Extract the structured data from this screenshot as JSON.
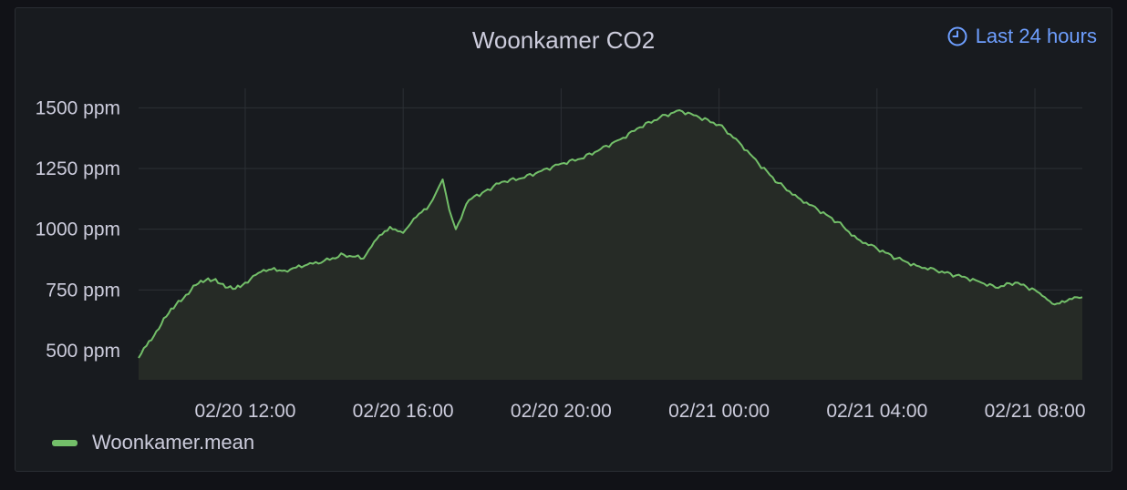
{
  "panel": {
    "time_range_label": "Last 24 hours"
  },
  "colors": {
    "series": "#73bf69",
    "fill": "#262b26",
    "grid": "#2c3035",
    "text": "#ccccdc",
    "accent": "#6e9fff"
  },
  "icons": {
    "time_range": "clock-icon",
    "legend": "line-swatch"
  },
  "chart_data": {
    "type": "area",
    "title": "Woonkamer CO2",
    "xlabel": "",
    "ylabel": "",
    "unit": "ppm",
    "x_range": [
      "02/20 09:18",
      "02/21 09:12"
    ],
    "ylim": [
      380,
      1580
    ],
    "y_ticks": [
      500,
      750,
      1000,
      1250,
      1500
    ],
    "y_tick_labels": [
      "500 ppm",
      "750 ppm",
      "1000 ppm",
      "1250 ppm",
      "1500 ppm"
    ],
    "x_ticks": [
      "02/20 12:00",
      "02/20 16:00",
      "02/20 20:00",
      "02/21 00:00",
      "02/21 04:00",
      "02/21 08:00"
    ],
    "grid": true,
    "legend_position": "bottom-left",
    "series": [
      {
        "name": "Woonkamer.mean",
        "x": [
          "02/20 09:18",
          "02/20 09:30",
          "02/20 09:45",
          "02/20 10:00",
          "02/20 10:15",
          "02/20 10:30",
          "02/20 10:45",
          "02/20 11:00",
          "02/20 11:15",
          "02/20 11:30",
          "02/20 11:45",
          "02/20 12:00",
          "02/20 12:20",
          "02/20 12:40",
          "02/20 13:00",
          "02/20 13:30",
          "02/20 14:00",
          "02/20 14:30",
          "02/20 15:00",
          "02/20 15:20",
          "02/20 15:40",
          "02/20 16:00",
          "02/20 16:20",
          "02/20 16:40",
          "02/20 16:50",
          "02/20 17:00",
          "02/20 17:10",
          "02/20 17:20",
          "02/20 17:40",
          "02/20 18:00",
          "02/20 18:30",
          "02/20 19:00",
          "02/20 19:30",
          "02/20 20:00",
          "02/20 20:30",
          "02/20 21:00",
          "02/20 21:30",
          "02/20 22:00",
          "02/20 22:30",
          "02/20 23:00",
          "02/20 23:30",
          "02/21 00:00",
          "02/21 00:30",
          "02/21 01:00",
          "02/21 01:30",
          "02/21 02:00",
          "02/21 02:30",
          "02/21 03:00",
          "02/21 03:30",
          "02/21 04:00",
          "02/21 04:30",
          "02/21 05:00",
          "02/21 05:30",
          "02/21 06:00",
          "02/21 06:30",
          "02/21 07:00",
          "02/21 07:30",
          "02/21 08:00",
          "02/21 08:15",
          "02/21 08:30",
          "02/21 08:45",
          "02/21 09:00",
          "02/21 09:12"
        ],
        "values": [
          470,
          520,
          580,
          640,
          690,
          730,
          770,
          790,
          795,
          760,
          755,
          780,
          820,
          835,
          830,
          850,
          870,
          895,
          880,
          960,
          1010,
          985,
          1050,
          1100,
          1150,
          1205,
          1080,
          1000,
          1120,
          1150,
          1195,
          1210,
          1240,
          1270,
          1290,
          1330,
          1370,
          1420,
          1460,
          1490,
          1460,
          1430,
          1360,
          1270,
          1190,
          1130,
          1080,
          1030,
          960,
          920,
          880,
          850,
          830,
          810,
          790,
          760,
          780,
          750,
          720,
          690,
          700,
          720,
          720
        ]
      }
    ]
  }
}
